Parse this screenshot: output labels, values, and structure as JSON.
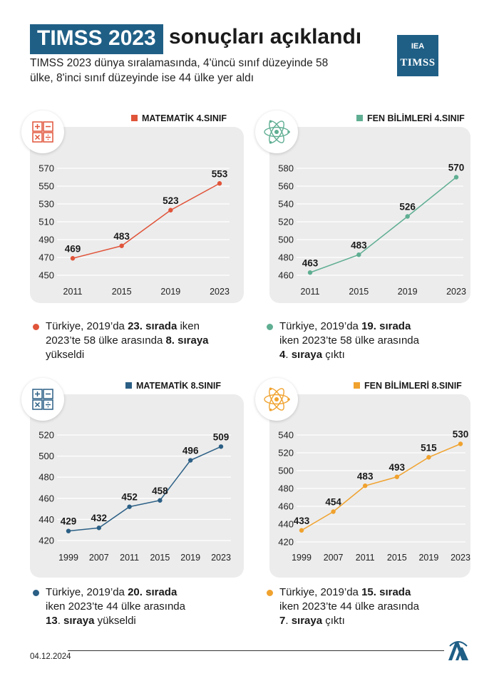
{
  "header": {
    "title_highlight": "TIMSS 2023",
    "title_rest": "sonuçları açıklandı",
    "subtitle": "TIMSS 2023 dünya sıralamasında, 4'üncü sınıf düzeyinde 58 ülke, 8'inci sınıf düzeyinde ise 44 ülke yer aldı",
    "logo_top": "IEA",
    "logo_bottom": "TIMSS"
  },
  "footer": {
    "date": "04.12.2024"
  },
  "chart_data": [
    {
      "type": "line",
      "title": "MATEMATİK 4.SINIF",
      "color": "#e0543a",
      "icon": "math-operators-icon",
      "x": [
        "2011",
        "2015",
        "2019",
        "2023"
      ],
      "values": [
        469,
        483,
        523,
        553
      ],
      "yticks": [
        450,
        470,
        490,
        510,
        530,
        550,
        570
      ],
      "ylim": [
        450,
        570
      ]
    },
    {
      "type": "line",
      "title": "FEN BİLİMLERİ 4.SINIF",
      "color": "#5fae92",
      "icon": "atom-icon",
      "x": [
        "2011",
        "2015",
        "2019",
        "2023"
      ],
      "values": [
        463,
        483,
        526,
        570
      ],
      "yticks": [
        460,
        480,
        500,
        520,
        540,
        560,
        580
      ],
      "ylim": [
        460,
        580
      ]
    },
    {
      "type": "line",
      "title": "MATEMATİK 8.SINIF",
      "color": "#2b5f85",
      "icon": "math-operators-icon",
      "x": [
        "1999",
        "2007",
        "2011",
        "2015",
        "2019",
        "2023"
      ],
      "values": [
        429,
        432,
        452,
        458,
        496,
        509
      ],
      "yticks": [
        420,
        440,
        460,
        480,
        500,
        520
      ],
      "ylim": [
        420,
        520
      ]
    },
    {
      "type": "line",
      "title": "FEN BİLİMLERİ 8.SINIF",
      "color": "#f0a22e",
      "icon": "atom-icon",
      "x": [
        "1999",
        "2007",
        "2011",
        "2015",
        "2019",
        "2023"
      ],
      "values": [
        433,
        454,
        483,
        493,
        515,
        530
      ],
      "yticks": [
        420,
        440,
        460,
        480,
        500,
        520,
        540
      ],
      "ylim": [
        420,
        540
      ]
    }
  ],
  "notes": [
    {
      "color": "#e0543a",
      "lines": [
        [
          {
            "t": "Türkiye, 2019’da "
          },
          {
            "t": "23. sırada",
            "b": true
          },
          {
            "t": " iken"
          }
        ],
        [
          {
            "t": "2023’te 58 ülke arasında "
          },
          {
            "t": "8. sıraya",
            "b": true
          }
        ],
        [
          {
            "t": "yükseldi"
          }
        ]
      ]
    },
    {
      "color": "#5fae92",
      "lines": [
        [
          {
            "t": "Türkiye, 2019’da "
          },
          {
            "t": "19. sırada",
            "b": true
          }
        ],
        [
          {
            "t": "iken 2023’te 58 ülke arasında"
          }
        ],
        [
          {
            "t": "4",
            "b": true
          },
          {
            "t": ". "
          },
          {
            "t": "sıraya",
            "b": true
          },
          {
            "t": " çıktı"
          }
        ]
      ]
    },
    {
      "color": "#2b5f85",
      "lines": [
        [
          {
            "t": "Türkiye, 2019’da "
          },
          {
            "t": "20. sırada",
            "b": true
          }
        ],
        [
          {
            "t": "iken 2023’te 44 ülke arasında"
          }
        ],
        [
          {
            "t": "13",
            "b": true
          },
          {
            "t": ". "
          },
          {
            "t": "sıraya",
            "b": true
          },
          {
            "t": " yükseldi"
          }
        ]
      ]
    },
    {
      "color": "#f0a22e",
      "lines": [
        [
          {
            "t": "Türkiye, 2019’da "
          },
          {
            "t": "15. sırada",
            "b": true
          }
        ],
        [
          {
            "t": "iken 2023’te 44 ülke arasında"
          }
        ],
        [
          {
            "t": "7",
            "b": true
          },
          {
            "t": ". "
          },
          {
            "t": "sıraya",
            "b": true
          },
          {
            "t": " çıktı"
          }
        ]
      ]
    }
  ]
}
